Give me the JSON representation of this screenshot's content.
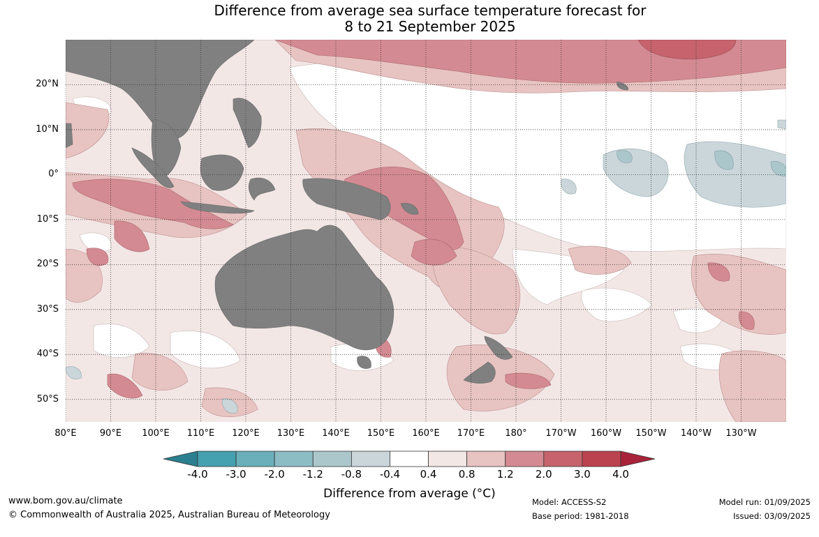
{
  "title": {
    "line1": "Difference from average sea surface temperature forecast for",
    "line2": "8 to 21 September 2025"
  },
  "axes": {
    "lat_labels": [
      "20°N",
      "10°N",
      "0°",
      "10°S",
      "20°S",
      "30°S",
      "40°S",
      "50°S"
    ],
    "lat_values": [
      20,
      10,
      0,
      -10,
      -20,
      -30,
      -40,
      -50
    ],
    "lon_labels": [
      "80°E",
      "90°E",
      "100°E",
      "110°E",
      "120°E",
      "130°E",
      "140°E",
      "150°E",
      "160°E",
      "170°E",
      "180°",
      "170°W",
      "160°W",
      "150°W",
      "140°W",
      "130°W"
    ],
    "lon_values": [
      80,
      90,
      100,
      110,
      120,
      130,
      140,
      150,
      160,
      170,
      180,
      190,
      200,
      210,
      220,
      230
    ],
    "lon_range": [
      80,
      240
    ],
    "lat_range": [
      -55,
      30
    ],
    "grid": true
  },
  "colorbar": {
    "ticks": [
      "-4.0",
      "-3.0",
      "-2.0",
      "-1.2",
      "-0.8",
      "-0.4",
      "0.4",
      "0.8",
      "1.2",
      "2.0",
      "3.0",
      "4.0"
    ],
    "colors": [
      "#2b7f8e",
      "#45a0b0",
      "#6aafba",
      "#8cbcc4",
      "#acc7cc",
      "#cad6da",
      "#ffffff",
      "#f3e7e6",
      "#e7c3c1",
      "#d48a92",
      "#c6636c",
      "#bb424f",
      "#a8223a"
    ],
    "label": "Difference from average (°C)"
  },
  "colors": {
    "land": "#808080",
    "neutral": "#ffffff",
    "warm_light": "#f3e7e6",
    "warm_mid": "#e7c3c1",
    "warm_strong": "#d48a92",
    "warm_stronger": "#c6636c",
    "cool_light": "#cad6da",
    "cool_mid": "#acc7cc"
  },
  "footer": {
    "website": "www.bom.gov.au/climate",
    "copyright": "© Commonwealth of Australia 2025, Australian Bureau of Meteorology",
    "model": "Model: ACCESS-S2",
    "base_period": "Base period: 1981-2018",
    "model_run": "Model run: 01/09/2025",
    "issued": "Issued: 03/09/2025"
  }
}
